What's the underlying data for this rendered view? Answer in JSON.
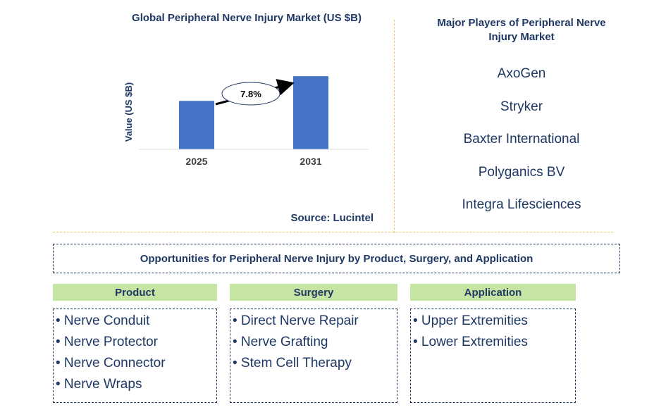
{
  "chart": {
    "title": "Global Peripheral Nerve Injury Market (US $B)",
    "source": "Source: Lucintel",
    "growth_label": "7.8%"
  },
  "chart_data": {
    "type": "bar",
    "title": "Global Peripheral Nerve Injury Market (US $B)",
    "xlabel": "",
    "ylabel": "Value (US $B)",
    "categories": [
      "2025",
      "2031"
    ],
    "values": [
      1.0,
      1.51
    ],
    "ylim": [
      0,
      1.6
    ],
    "annotation": "7.8%",
    "bar_color": "#4472c4",
    "grid": false
  },
  "players": {
    "title": "Major Players of Peripheral Nerve Injury Market",
    "items": [
      "AxoGen",
      "Stryker",
      "Baxter International",
      "Polyganics BV",
      "Integra Lifesciences"
    ]
  },
  "opportunities": {
    "title": "Opportunities for Peripheral Nerve Injury by Product, Surgery, and Application",
    "segments": [
      {
        "header": "Product",
        "items": [
          "• Nerve Conduit",
          "• Nerve Protector",
          "• Nerve Connector",
          "• Nerve Wraps"
        ]
      },
      {
        "header": "Surgery",
        "items": [
          "• Direct Nerve Repair",
          "• Nerve Grafting",
          "• Stem Cell Therapy"
        ]
      },
      {
        "header": "Application",
        "items": [
          "• Upper Extremities",
          "• Lower Extremities"
        ]
      }
    ]
  },
  "colors": {
    "text": "#1f3864",
    "bar": "#4472c4",
    "header_bg": "#c6e5a5",
    "divider": "#f2c46a"
  }
}
